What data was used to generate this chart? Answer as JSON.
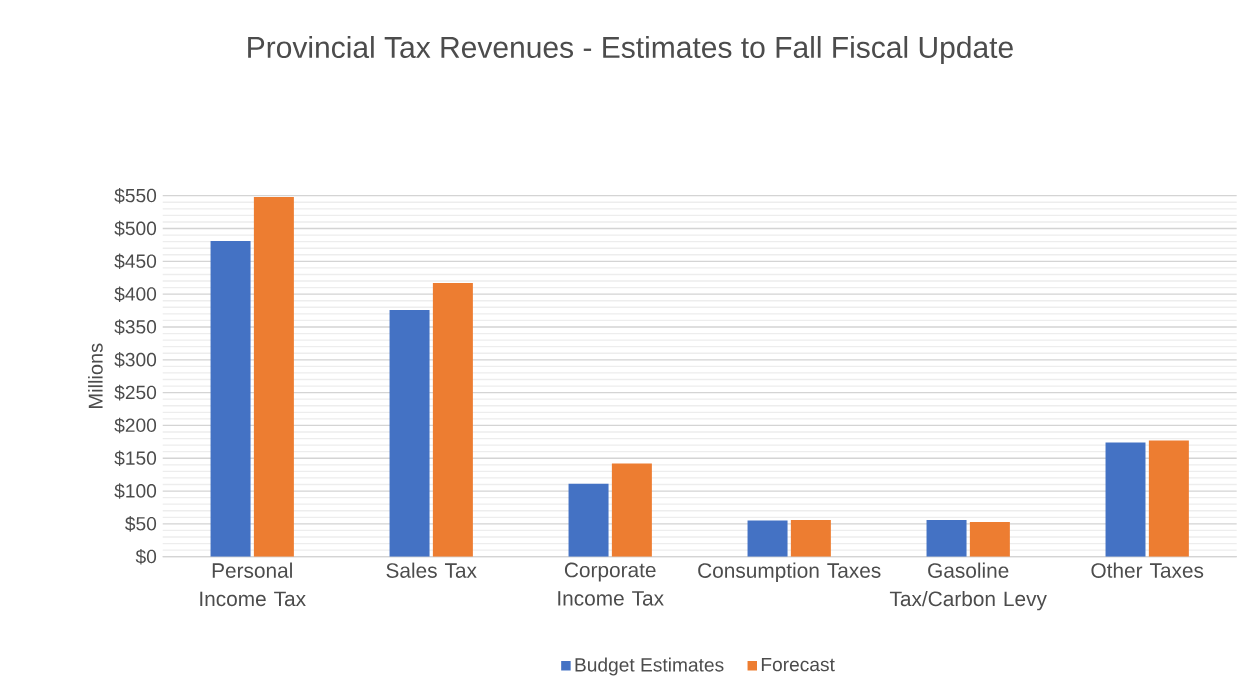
{
  "chart_data": {
    "type": "bar",
    "title": "Provincial Tax Revenues - Estimates to Fall Fiscal Update",
    "ylabel": "Millions",
    "categories": [
      "Personal Income Tax",
      "Sales Tax",
      "Corporate Income Tax",
      "Consumption Taxes",
      "Gasoline Tax/Carbon Levy",
      "Other Taxes"
    ],
    "series": [
      {
        "name": "Budget Estimates",
        "color": "#4472c4",
        "values": [
          481,
          376,
          111,
          55,
          56,
          174
        ]
      },
      {
        "name": "Forecast",
        "color": "#ed7d31",
        "values": [
          548,
          417,
          142,
          56,
          53,
          177
        ]
      }
    ],
    "ylim": [
      0,
      550
    ],
    "yticks": [
      {
        "value": 0,
        "label": "$0"
      },
      {
        "value": 50,
        "label": "$50"
      },
      {
        "value": 100,
        "label": "$100"
      },
      {
        "value": 150,
        "label": "$150"
      },
      {
        "value": 200,
        "label": "$200"
      },
      {
        "value": 250,
        "label": "$250"
      },
      {
        "value": 300,
        "label": "$300"
      },
      {
        "value": 350,
        "label": "$350"
      },
      {
        "value": 400,
        "label": "$400"
      },
      {
        "value": 450,
        "label": "$450"
      },
      {
        "value": 500,
        "label": "$500"
      },
      {
        "value": 550,
        "label": "$550"
      }
    ],
    "grid": "y",
    "legend": "bottom"
  }
}
